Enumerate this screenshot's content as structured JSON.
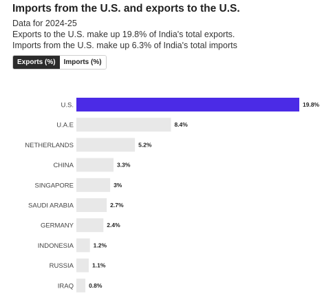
{
  "header": {
    "title": "Imports from the U.S. and exports to the U.S.",
    "sub1": "Data for 2024-25",
    "sub2": "Exports to the U.S. make up 19.8% of India's total exports.",
    "sub3": "Imports from the U.S. make up 6.3% of India's total imports"
  },
  "tabs": [
    {
      "label": "Exports (%)",
      "active": true
    },
    {
      "label": "Imports (%)",
      "active": false
    }
  ],
  "colors": {
    "highlight": "#4b2be6",
    "bar": "#e8e8e8"
  },
  "chart_data": {
    "type": "bar",
    "orientation": "horizontal",
    "categories": [
      "U.S.",
      "U.A.E",
      "NETHERLANDS",
      "CHINA",
      "SINGAPORE",
      "SAUDI ARABIA",
      "GERMANY",
      "INDONESIA",
      "RUSSIA",
      "IRAQ"
    ],
    "values": [
      19.8,
      8.4,
      5.2,
      3.3,
      3,
      2.7,
      2.4,
      1.2,
      1.1,
      0.8
    ],
    "value_labels": [
      "19.8%",
      "8.4%",
      "5.2%",
      "3.3%",
      "3%",
      "2.7%",
      "2.4%",
      "1.2%",
      "1.1%",
      "0.8%"
    ],
    "highlight_category": "U.S.",
    "title": "",
    "xlabel": "",
    "ylabel": "",
    "xlim": [
      0,
      19.8
    ],
    "grid": false,
    "legend": "none"
  }
}
